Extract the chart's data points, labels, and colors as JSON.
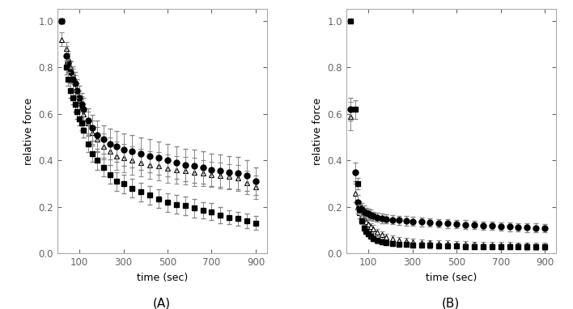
{
  "panel_A": {
    "time": [
      20,
      40,
      50,
      60,
      70,
      80,
      90,
      100,
      110,
      120,
      140,
      160,
      180,
      210,
      240,
      270,
      300,
      340,
      380,
      420,
      460,
      500,
      540,
      580,
      620,
      660,
      700,
      740,
      780,
      820,
      860,
      900
    ],
    "circle": {
      "y": [
        1.0,
        0.85,
        0.82,
        0.78,
        0.75,
        0.73,
        0.7,
        0.67,
        0.64,
        0.62,
        0.57,
        0.54,
        0.51,
        0.49,
        0.47,
        0.46,
        0.445,
        0.44,
        0.43,
        0.42,
        0.41,
        0.4,
        0.39,
        0.38,
        0.375,
        0.37,
        0.36,
        0.355,
        0.35,
        0.345,
        0.335,
        0.31
      ],
      "yerr": [
        0.0,
        0.04,
        0.04,
        0.045,
        0.045,
        0.05,
        0.05,
        0.05,
        0.05,
        0.05,
        0.055,
        0.055,
        0.06,
        0.06,
        0.065,
        0.065,
        0.07,
        0.07,
        0.07,
        0.07,
        0.07,
        0.07,
        0.07,
        0.07,
        0.07,
        0.07,
        0.07,
        0.07,
        0.07,
        0.07,
        0.065,
        0.06
      ]
    },
    "triangle": {
      "y": [
        0.92,
        0.88,
        0.84,
        0.8,
        0.77,
        0.73,
        0.69,
        0.66,
        0.63,
        0.6,
        0.56,
        0.52,
        0.49,
        0.46,
        0.44,
        0.42,
        0.41,
        0.4,
        0.39,
        0.38,
        0.375,
        0.365,
        0.36,
        0.355,
        0.35,
        0.345,
        0.34,
        0.335,
        0.33,
        0.325,
        0.305,
        0.285
      ],
      "yerr": [
        0.03,
        0.03,
        0.03,
        0.03,
        0.035,
        0.035,
        0.04,
        0.04,
        0.045,
        0.045,
        0.05,
        0.05,
        0.055,
        0.055,
        0.06,
        0.06,
        0.06,
        0.06,
        0.06,
        0.06,
        0.06,
        0.06,
        0.06,
        0.06,
        0.06,
        0.055,
        0.055,
        0.055,
        0.055,
        0.055,
        0.05,
        0.05
      ]
    },
    "square": {
      "y": [
        1.0,
        0.8,
        0.75,
        0.7,
        0.67,
        0.64,
        0.61,
        0.58,
        0.56,
        0.53,
        0.47,
        0.43,
        0.4,
        0.37,
        0.34,
        0.31,
        0.3,
        0.28,
        0.265,
        0.25,
        0.235,
        0.22,
        0.21,
        0.205,
        0.195,
        0.185,
        0.18,
        0.165,
        0.155,
        0.15,
        0.14,
        0.13
      ],
      "yerr": [
        0.0,
        0.03,
        0.03,
        0.03,
        0.03,
        0.03,
        0.03,
        0.03,
        0.03,
        0.03,
        0.035,
        0.035,
        0.04,
        0.04,
        0.04,
        0.04,
        0.04,
        0.04,
        0.04,
        0.04,
        0.04,
        0.04,
        0.04,
        0.04,
        0.04,
        0.035,
        0.035,
        0.035,
        0.03,
        0.03,
        0.03,
        0.03
      ]
    }
  },
  "panel_B": {
    "time": [
      20,
      40,
      50,
      60,
      70,
      80,
      90,
      100,
      110,
      120,
      140,
      160,
      180,
      210,
      240,
      270,
      300,
      340,
      380,
      420,
      460,
      500,
      540,
      580,
      620,
      660,
      700,
      740,
      780,
      820,
      860,
      900
    ],
    "circle": {
      "y": [
        0.62,
        0.35,
        0.22,
        0.2,
        0.19,
        0.18,
        0.175,
        0.17,
        0.165,
        0.16,
        0.155,
        0.15,
        0.148,
        0.145,
        0.142,
        0.14,
        0.138,
        0.135,
        0.133,
        0.13,
        0.128,
        0.126,
        0.124,
        0.122,
        0.12,
        0.118,
        0.116,
        0.114,
        0.112,
        0.111,
        0.11,
        0.108
      ],
      "yerr": [
        0.05,
        0.04,
        0.03,
        0.025,
        0.025,
        0.025,
        0.022,
        0.022,
        0.022,
        0.02,
        0.02,
        0.02,
        0.02,
        0.02,
        0.02,
        0.02,
        0.018,
        0.018,
        0.018,
        0.018,
        0.018,
        0.018,
        0.018,
        0.018,
        0.018,
        0.018,
        0.018,
        0.018,
        0.018,
        0.018,
        0.018,
        0.018
      ]
    },
    "triangle": {
      "y": [
        0.59,
        0.26,
        0.2,
        0.175,
        0.16,
        0.15,
        0.135,
        0.125,
        0.115,
        0.105,
        0.09,
        0.08,
        0.07,
        0.065,
        0.058,
        0.053,
        0.05,
        0.047,
        0.045,
        0.043,
        0.042,
        0.04,
        0.039,
        0.038,
        0.037,
        0.036,
        0.036,
        0.035,
        0.034,
        0.034,
        0.033,
        0.033
      ],
      "yerr": [
        0.06,
        0.04,
        0.03,
        0.025,
        0.022,
        0.02,
        0.018,
        0.018,
        0.016,
        0.016,
        0.015,
        0.015,
        0.014,
        0.014,
        0.013,
        0.013,
        0.013,
        0.013,
        0.013,
        0.013,
        0.013,
        0.013,
        0.013,
        0.013,
        0.013,
        0.013,
        0.013,
        0.013,
        0.013,
        0.013,
        0.013,
        0.013
      ]
    },
    "square": {
      "y": [
        1.0,
        0.62,
        0.3,
        0.19,
        0.14,
        0.11,
        0.095,
        0.085,
        0.075,
        0.065,
        0.055,
        0.05,
        0.045,
        0.042,
        0.04,
        0.038,
        0.036,
        0.035,
        0.034,
        0.033,
        0.032,
        0.031,
        0.03,
        0.03,
        0.029,
        0.029,
        0.028,
        0.028,
        0.028,
        0.027,
        0.027,
        0.027
      ],
      "yerr": [
        0.0,
        0.04,
        0.025,
        0.018,
        0.015,
        0.013,
        0.012,
        0.012,
        0.012,
        0.012,
        0.011,
        0.011,
        0.011,
        0.011,
        0.011,
        0.011,
        0.011,
        0.011,
        0.011,
        0.011,
        0.011,
        0.011,
        0.011,
        0.011,
        0.011,
        0.011,
        0.011,
        0.011,
        0.011,
        0.011,
        0.011,
        0.011
      ]
    }
  },
  "xlabel": "time (sec)",
  "ylabel": "relative force",
  "xlim": [
    0,
    950
  ],
  "ylim_A": [
    0,
    1.05
  ],
  "ylim_B": [
    0,
    1.05
  ],
  "xticks": [
    100,
    300,
    500,
    700,
    900
  ],
  "yticks": [
    0.0,
    0.2,
    0.4,
    0.6,
    0.8,
    1.0
  ],
  "label_A": "(A)",
  "label_B": "(B)",
  "markersize_circle": 5,
  "markersize_triangle": 5,
  "markersize_square": 5,
  "capsize": 2,
  "elinewidth": 0.7,
  "ecolor": "#888888",
  "linewidth": 0.0
}
